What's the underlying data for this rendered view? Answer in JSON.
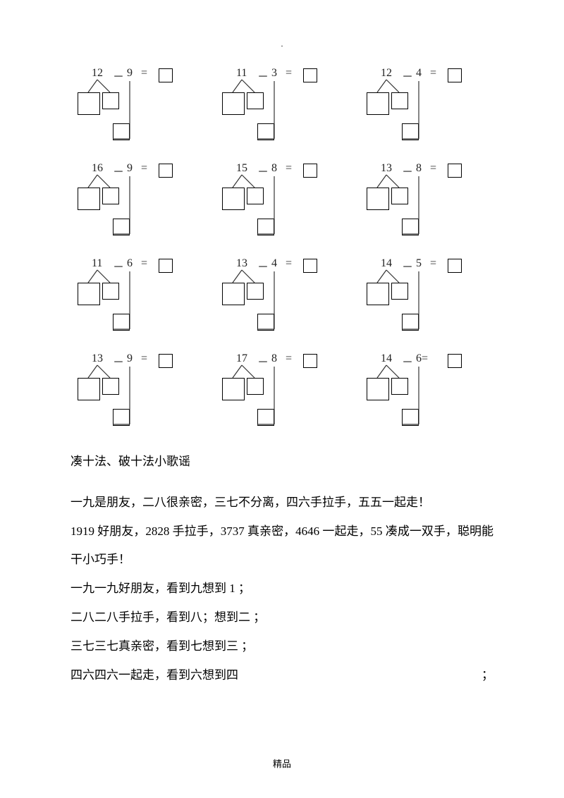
{
  "top_marker": ".",
  "problems": [
    [
      {
        "a": "12",
        "b": "9"
      },
      {
        "a": "11",
        "b": "3"
      },
      {
        "a": "12",
        "b": "4"
      }
    ],
    [
      {
        "a": "16",
        "b": "9"
      },
      {
        "a": "15",
        "b": "8"
      },
      {
        "a": "13",
        "b": "8"
      }
    ],
    [
      {
        "a": "11",
        "b": "6"
      },
      {
        "a": "13",
        "b": "4"
      },
      {
        "a": "14",
        "b": "5"
      }
    ],
    [
      {
        "a": "13",
        "b": "9"
      },
      {
        "a": "17",
        "b": "8"
      },
      {
        "a": "14",
        "b": "6"
      }
    ]
  ],
  "section_title": "凑十法、破十法小歌谣",
  "lines": [
    "一九是朋友，二八很亲密，三七不分离，四六手拉手，五五一起走！",
    "1919 好朋友，2828 手拉手，3737 真亲密，4646 一起走，55 凑成一双手，聪明能干小巧手！",
    "一九一九好朋友，看到九想到 1 ；",
    "二八二八手拉手，看到八；想到二 ；",
    "三七三七真亲密，看到七想到三 ；"
  ],
  "last_line_left": "四六四六一起走，看到六想到四",
  "last_line_right": "；",
  "footer": "精品",
  "style": {
    "box_stroke": "#000000",
    "line_stroke": "#333333",
    "text_color": "#000000"
  }
}
